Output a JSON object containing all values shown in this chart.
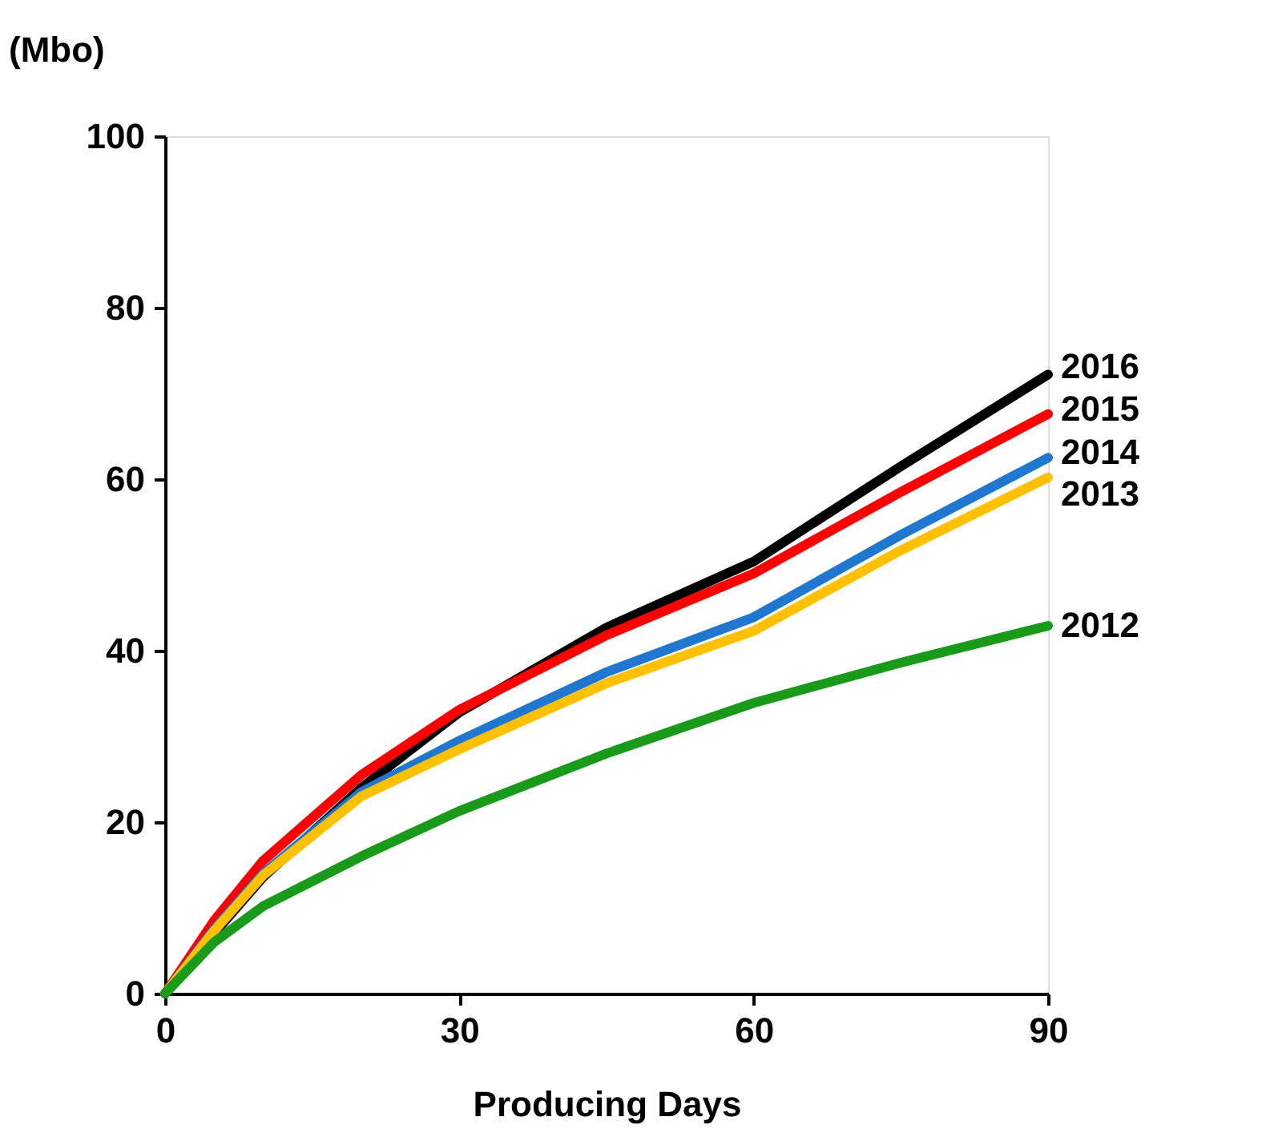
{
  "chart_data": {
    "type": "line",
    "xlabel": "Producing Days",
    "ylabel": "(Mbo)",
    "x": [
      0,
      5,
      10,
      20,
      30,
      45,
      60,
      75,
      90
    ],
    "series": [
      {
        "name": "2016",
        "color": "#000000",
        "values": [
          0,
          7,
          13.6,
          24,
          32.8,
          42.7,
          50.4,
          61.5,
          72.2
        ]
      },
      {
        "name": "2015",
        "color": "#ff0000",
        "values": [
          0,
          8.5,
          15.5,
          25.5,
          33.1,
          41.8,
          49,
          58.5,
          67.6
        ]
      },
      {
        "name": "2014",
        "color": "#1f77d0",
        "values": [
          0,
          7.5,
          14,
          23.5,
          29.5,
          37.5,
          43.9,
          53.5,
          62.5
        ]
      },
      {
        "name": "2013",
        "color": "#ffc000",
        "values": [
          0,
          7.3,
          13.8,
          23,
          28.5,
          36.2,
          42.3,
          51.7,
          60.2
        ]
      },
      {
        "name": "2012",
        "color": "#1a9a1a",
        "values": [
          0,
          6,
          10.2,
          16,
          21.3,
          28,
          33.9,
          38.6,
          42.9
        ]
      }
    ],
    "xlim": [
      0,
      90
    ],
    "xticks": [
      0,
      30,
      60,
      90
    ],
    "ylim": [
      0,
      100
    ],
    "yticks": [
      0,
      20,
      40,
      60,
      80,
      100
    ],
    "grid": false,
    "legend": false,
    "marker": "none",
    "line_style": "solid"
  }
}
